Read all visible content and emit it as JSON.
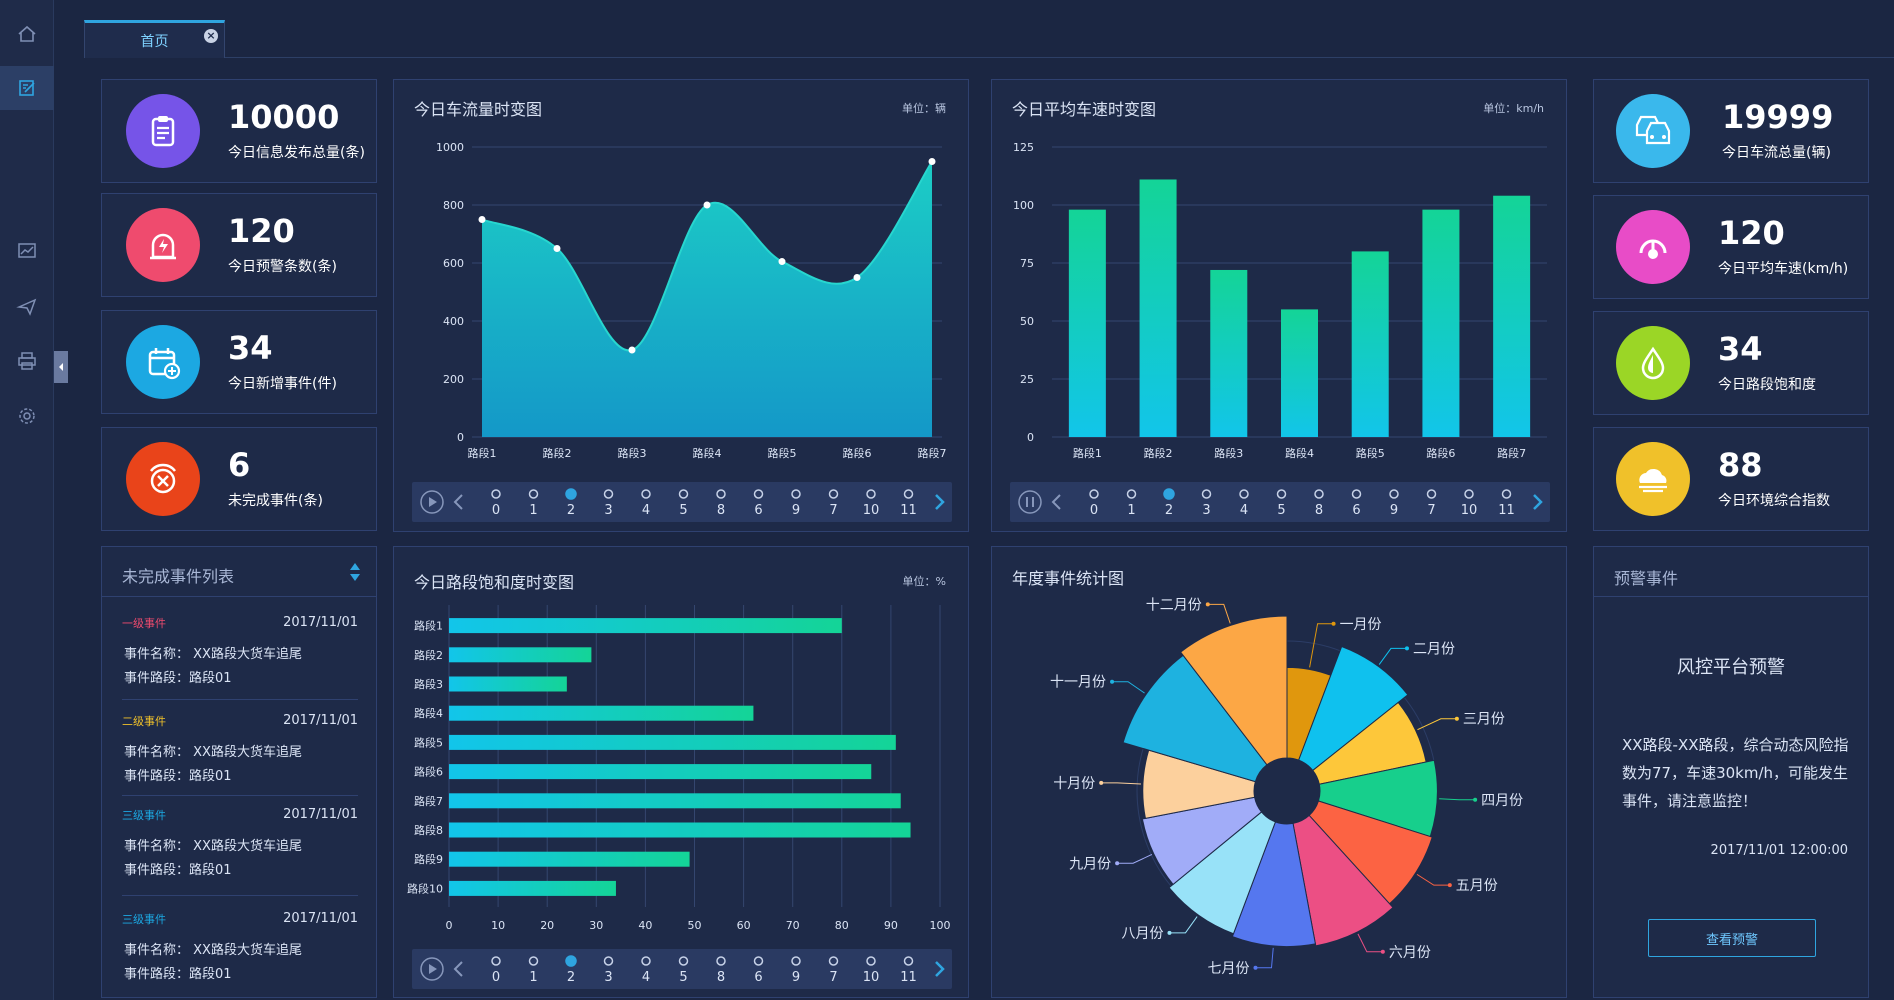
{
  "tabs": [
    {
      "label": "首页",
      "close": "×"
    }
  ],
  "stats_left": [
    {
      "value": "10000",
      "label": "今日信息发布总量(条)",
      "color": "#7654e8",
      "icon": "clipboard-icon"
    },
    {
      "value": "120",
      "label": "今日预警条数(条)",
      "color": "#ef4b6e",
      "icon": "alarm-icon"
    },
    {
      "value": "34",
      "label": "今日新增事件(件)",
      "color": "#1ca8e2",
      "icon": "calendar-add-icon"
    },
    {
      "value": "6",
      "label": "未完成事件(条)",
      "color": "#e9441a",
      "icon": "close-circle-icon"
    }
  ],
  "stats_right": [
    {
      "value": "19999",
      "label": "今日车流总量(辆)",
      "color": "#3ab8ec",
      "icon": "cars-icon"
    },
    {
      "value": "120",
      "label": "今日平均车速(km/h)",
      "color": "#e84cc7",
      "icon": "speedometer-icon"
    },
    {
      "value": "34",
      "label": "今日路段饱和度",
      "color": "#9bd626",
      "icon": "drop-icon"
    },
    {
      "value": "88",
      "label": "今日环境综合指数",
      "color": "#f0c12a",
      "icon": "cloud-sun-icon"
    }
  ],
  "timeline_ticks": [
    "0",
    "1",
    "2",
    "3",
    "4",
    "5",
    "8",
    "6",
    "9",
    "7",
    "10",
    "11"
  ],
  "timeline_active": 2,
  "flow_chart": {
    "title": "今日车流量时变图",
    "unit": "单位：辆",
    "chart_data": {
      "type": "area",
      "categories": [
        "路段1",
        "路段2",
        "路段3",
        "路段4",
        "路段5",
        "路段6",
        "路段7"
      ],
      "values": [
        750,
        650,
        300,
        800,
        605,
        550,
        950
      ],
      "ylim": [
        0,
        1000
      ],
      "yticks": [
        "0",
        "200",
        "400",
        "600",
        "800",
        "1000"
      ]
    }
  },
  "speed_chart": {
    "title": "今日平均车速时变图",
    "unit": "单位：km/h",
    "chart_data": {
      "type": "bar",
      "categories": [
        "路段1",
        "路段2",
        "路段3",
        "路段4",
        "路段5",
        "路段6",
        "路段7"
      ],
      "values": [
        98,
        111,
        72,
        55,
        80,
        98,
        104
      ],
      "ylim": [
        0,
        125
      ],
      "yticks": [
        "0",
        "25",
        "50",
        "75",
        "100",
        "125"
      ]
    }
  },
  "saturation_chart": {
    "title": "今日路段饱和度时变图",
    "unit": "单位：%",
    "chart_data": {
      "type": "bar",
      "orientation": "horizontal",
      "categories": [
        "路段1",
        "路段2",
        "路段3",
        "路段4",
        "路段5",
        "路段6",
        "路段7",
        "路段8",
        "路段9",
        "路段10"
      ],
      "values": [
        80,
        29,
        24,
        62,
        91,
        86,
        92,
        94,
        49,
        34
      ],
      "xlim": [
        0,
        100
      ],
      "xticks": [
        "0",
        "10",
        "20",
        "30",
        "40",
        "50",
        "60",
        "70",
        "80",
        "90",
        "100"
      ]
    }
  },
  "annual_chart": {
    "title": "年度事件统计图",
    "chart_data": {
      "type": "pie",
      "subtype": "rose",
      "categories": [
        "一月份",
        "二月份",
        "三月份",
        "四月份",
        "五月份",
        "六月份",
        "七月份",
        "八月份",
        "九月份",
        "十月份",
        "十一月份",
        "十二月份"
      ],
      "values": [
        62,
        92,
        80,
        88,
        90,
        95,
        93,
        90,
        85,
        82,
        108,
        112
      ],
      "colors": [
        "#e0970d",
        "#0fc1ee",
        "#fdc73a",
        "#17cf8c",
        "#fc6343",
        "#ec4f84",
        "#5577ef",
        "#98e2f8",
        "#a1acf8",
        "#fcd09d",
        "#1eb2e0",
        "#fca745"
      ]
    }
  },
  "events": {
    "title": "未完成事件列表",
    "items": [
      {
        "level": "一级事件",
        "level_color": "#ef4b6e",
        "date": "2017/11/01",
        "name": "事件名称：  XX路段大货车追尾",
        "road": "事件路段：路段01"
      },
      {
        "level": "二级事件",
        "level_color": "#f0c12a",
        "date": "2017/11/01",
        "name": "事件名称：  XX路段大货车追尾",
        "road": "事件路段：路段01"
      },
      {
        "level": "三级事件",
        "level_color": "#1ca8e2",
        "date": "2017/11/01",
        "name": "事件名称：  XX路段大货车追尾",
        "road": "事件路段：路段01"
      },
      {
        "level": "三级事件",
        "level_color": "#1ca8e2",
        "date": "2017/11/01",
        "name": "事件名称：  XX路段大货车追尾",
        "road": "事件路段：路段01"
      }
    ]
  },
  "warning": {
    "title": "预警事件",
    "heading": "风控平台预警",
    "body": "XX路段-XX路段，综合动态风险指数为77，车速30km/h，可能发生事件，请注意监控！",
    "time": "2017/11/01   12:00:00",
    "button": "查看预警"
  }
}
